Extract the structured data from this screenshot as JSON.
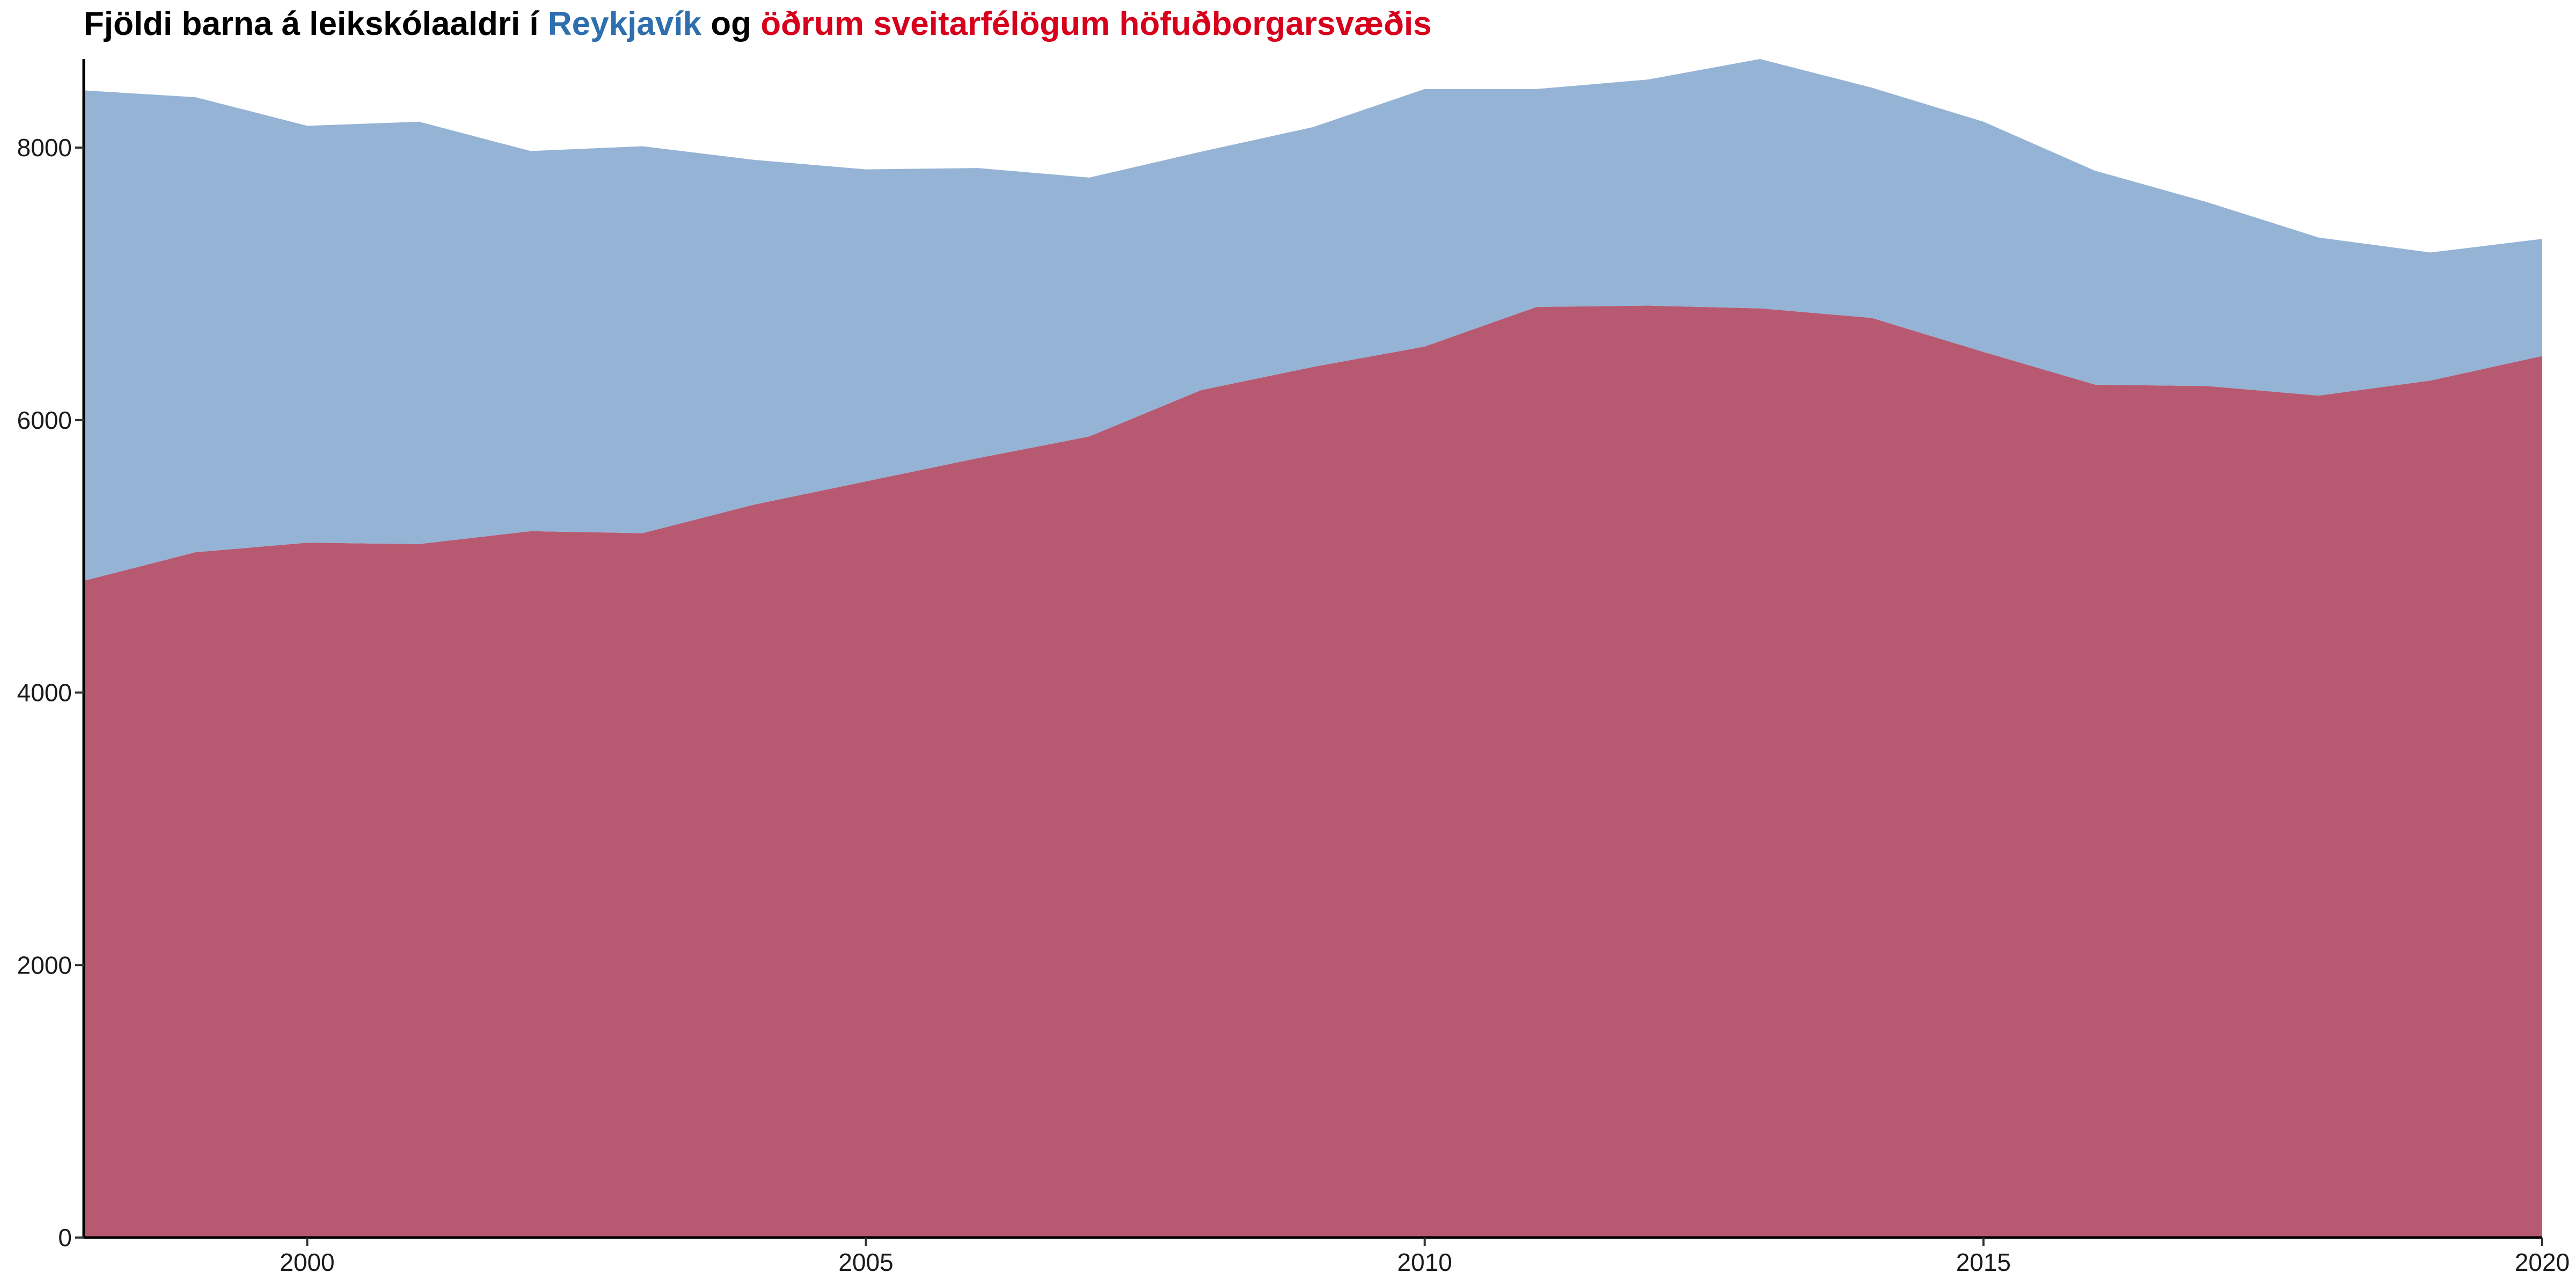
{
  "title": {
    "part1": "Fjöldi barna á leikskólaaldri í ",
    "part2": "Reykjavík",
    "part3": " og ",
    "part4": "öðrum sveitarfélögum höfuðborgarsvæðis"
  },
  "colors": {
    "reykjavik": "#2f6fad",
    "other": "#d6001c",
    "reykjavik_fill": "#95b3d4",
    "other_fill": "#b75a71",
    "axis": "#000000"
  },
  "chart_data": {
    "type": "area",
    "stacked": true,
    "x": [
      1998,
      1999,
      2000,
      2001,
      2002,
      2003,
      2004,
      2005,
      2006,
      2007,
      2008,
      2009,
      2010,
      2011,
      2012,
      2013,
      2014,
      2015,
      2016,
      2017,
      2018,
      2019,
      2020
    ],
    "series": [
      {
        "name": "öðrum sveitarfélögum höfuðborgarsvæðis",
        "values": [
          4820,
          5030,
          5100,
          5090,
          5185,
          5170,
          5380,
          5550,
          5720,
          5880,
          6220,
          6390,
          6540,
          6830,
          6840,
          6820,
          6750,
          6500,
          6260,
          6250,
          6180,
          6290,
          6470
        ]
      },
      {
        "name": "Reykjavík",
        "values": [
          3600,
          3340,
          3060,
          3100,
          2790,
          2840,
          2530,
          2290,
          2130,
          1900,
          1750,
          1760,
          1890,
          1600,
          1660,
          1830,
          1690,
          1690,
          1570,
          1350,
          1160,
          940,
          860
        ]
      }
    ],
    "xlim": [
      1998,
      2020
    ],
    "ylim": [
      0,
      8650
    ],
    "x_ticks": [
      2000,
      2005,
      2010,
      2015,
      2020
    ],
    "y_ticks": [
      0,
      2000,
      4000,
      6000,
      8000
    ],
    "xlabel": "",
    "ylabel": "",
    "grid": false,
    "legend": "none"
  }
}
